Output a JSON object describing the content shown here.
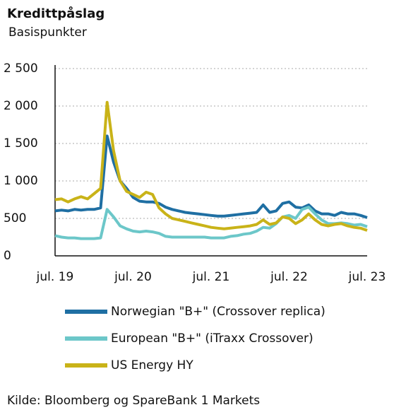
{
  "chart_data": {
    "type": "line",
    "title": "Kredittpåslag",
    "subtitle": "Basispunkter",
    "source": "Kilde: Bloomberg og SpareBank 1 Markets",
    "categories": [
      "jul. 19",
      null,
      null,
      null,
      null,
      null,
      null,
      null,
      null,
      null,
      null,
      null,
      "jul. 20",
      null,
      null,
      null,
      null,
      null,
      null,
      null,
      null,
      null,
      null,
      null,
      "jul. 21",
      null,
      null,
      null,
      null,
      null,
      null,
      null,
      null,
      null,
      null,
      null,
      "jul. 22",
      null,
      null,
      null,
      null,
      null,
      null,
      null,
      null,
      null,
      null,
      null,
      "jul. 23"
    ],
    "ylim": [
      0,
      2500
    ],
    "yticks": [
      0,
      500,
      {
        "value": 1000,
        "label": "1 000"
      },
      {
        "value": 1500,
        "label": "1 500"
      },
      {
        "value": 2000,
        "label": "2 000"
      },
      {
        "value": 2500,
        "label": "2 500"
      }
    ],
    "grid": true,
    "series": [
      {
        "name": "Norwegian \"B+\" (Crossover replica)",
        "color": "#1f6fa3",
        "values": [
          600,
          610,
          600,
          620,
          610,
          620,
          620,
          640,
          1600,
          1250,
          1000,
          900,
          780,
          730,
          720,
          720,
          700,
          650,
          620,
          600,
          580,
          570,
          560,
          550,
          540,
          530,
          530,
          540,
          550,
          560,
          570,
          580,
          680,
          580,
          600,
          700,
          720,
          650,
          640,
          680,
          600,
          560,
          560,
          540,
          580,
          560,
          560,
          540,
          510
        ]
      },
      {
        "name": "European \"B+\" (iTraxx Crossover)",
        "color": "#6cc7c9",
        "values": [
          270,
          250,
          240,
          240,
          230,
          230,
          230,
          240,
          620,
          520,
          400,
          360,
          330,
          320,
          330,
          320,
          300,
          260,
          250,
          250,
          250,
          250,
          250,
          250,
          240,
          240,
          240,
          260,
          270,
          290,
          300,
          330,
          380,
          370,
          430,
          520,
          540,
          500,
          620,
          650,
          560,
          480,
          430,
          430,
          440,
          430,
          410,
          420,
          390
        ]
      },
      {
        "name": "US Energy HY",
        "color": "#c9b318",
        "values": [
          750,
          760,
          720,
          760,
          790,
          760,
          830,
          900,
          2050,
          1400,
          1000,
          860,
          820,
          780,
          850,
          820,
          640,
          560,
          500,
          480,
          460,
          440,
          420,
          400,
          380,
          370,
          360,
          370,
          380,
          390,
          400,
          420,
          480,
          420,
          440,
          520,
          500,
          430,
          480,
          560,
          480,
          420,
          400,
          420,
          430,
          400,
          380,
          370,
          340
        ]
      }
    ]
  }
}
